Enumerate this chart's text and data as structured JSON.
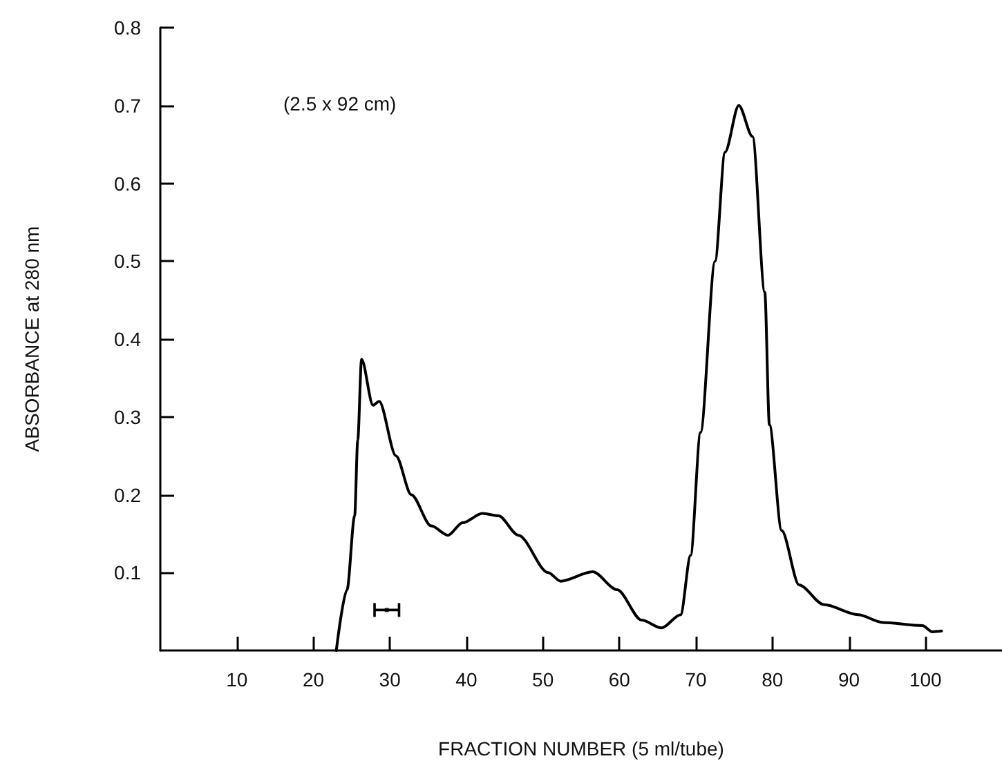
{
  "chart_data": {
    "type": "line",
    "xlabel": "FRACTION NUMBER (5 ml/tube)",
    "ylabel": "ABSORBANCE at 280 nm",
    "annotations": [
      "(2.5 x 92 cm)"
    ],
    "xlim": [
      0,
      110
    ],
    "xticks": [
      10,
      20,
      30,
      40,
      50,
      60,
      70,
      80,
      90,
      100
    ],
    "ylim": [
      0,
      0.8
    ],
    "yticks": [
      0.1,
      0.2,
      0.3,
      0.4,
      0.5,
      0.6,
      0.7,
      0.8
    ],
    "grid": false,
    "marker": "none",
    "line_style": "solid",
    "series": [
      {
        "color": "#000000",
        "x": [
          23,
          24.4,
          25.4,
          25.8,
          26.3,
          27.8,
          28.6,
          30.8,
          32.8,
          35.4,
          37.6,
          39.5,
          42.1,
          44.2,
          46.8,
          50.7,
          52.3,
          56.5,
          59.7,
          62.9,
          65.5,
          68,
          69.3,
          70.6,
          72.5,
          73.8,
          75.6,
          77.4,
          79,
          79.6,
          81.2,
          83.5,
          86.7,
          91.2,
          94.4,
          99.6,
          100.9,
          102.1
        ],
        "values": [
          0,
          0.078,
          0.173,
          0.27,
          0.374,
          0.315,
          0.32,
          0.25,
          0.2,
          0.16,
          0.148,
          0.164,
          0.176,
          0.173,
          0.148,
          0.1,
          0.089,
          0.101,
          0.078,
          0.039,
          0.029,
          0.046,
          0.122,
          0.28,
          0.5,
          0.64,
          0.7,
          0.66,
          0.46,
          0.29,
          0.154,
          0.084,
          0.059,
          0.046,
          0.036,
          0.032,
          0.024,
          0.025
        ]
      },
      {
        "type": "scatter",
        "color": "#000000",
        "marker": "square",
        "x": [
          29.6
        ],
        "values": [
          0.052
        ],
        "xerrors": [
          1.6
        ]
      }
    ]
  }
}
